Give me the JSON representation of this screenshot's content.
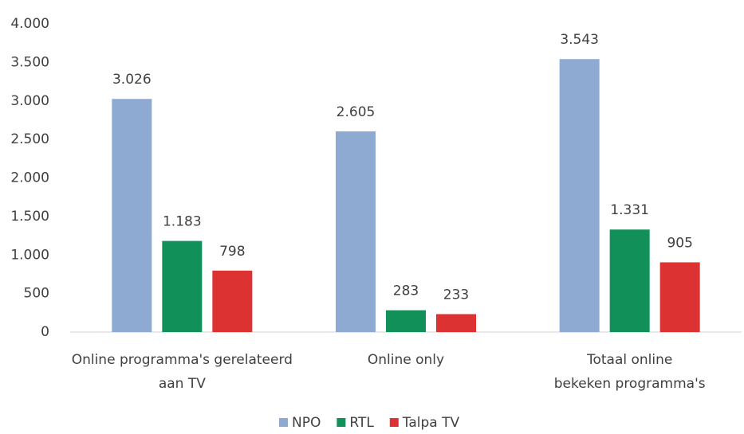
{
  "chart_data": {
    "type": "bar",
    "categories": [
      "Online programma's gerelateerd aan TV",
      "Online only",
      "Totaal online bekeken programma's"
    ],
    "series": [
      {
        "name": "NPO",
        "color": "#8eaad2",
        "values": [
          3026,
          2605,
          3543
        ],
        "value_labels": [
          "3.026",
          "2.605",
          "3.543"
        ]
      },
      {
        "name": "RTL",
        "color": "#12905a",
        "values": [
          1183,
          283,
          1331
        ],
        "value_labels": [
          "1.183",
          "283",
          "1.331"
        ]
      },
      {
        "name": "Talpa TV",
        "color": "#dd3232",
        "values": [
          798,
          233,
          905
        ],
        "value_labels": [
          "798",
          "233",
          "905"
        ]
      }
    ],
    "ylim": [
      0,
      4000
    ],
    "yticks": [
      0,
      500,
      {
        "value": 1000,
        "label": "1.000"
      },
      {
        "value": 1500,
        "label": "1.500"
      },
      {
        "value": 2000,
        "label": "2.000"
      },
      {
        "value": 2500,
        "label": "2.500"
      },
      {
        "value": 3000,
        "label": "3.000"
      },
      {
        "value": 3500,
        "label": "3.500"
      },
      {
        "value": 4000,
        "label": "4.000"
      }
    ],
    "grid": false,
    "legend": "bottom"
  }
}
